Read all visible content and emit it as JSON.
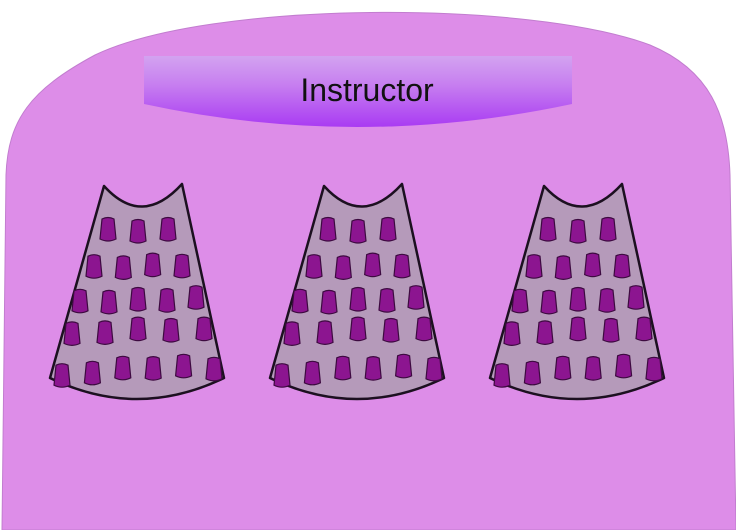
{
  "title": "Instructor",
  "colors": {
    "room": "#dd8de8",
    "stage_light": "#c77ff0",
    "stage_dark": "#a93bf2",
    "section_fill": "#b59aba",
    "section_stroke": "#1c1020",
    "seat_fill": "#8c1590",
    "seat_stroke": "#3d0a40"
  },
  "sections": [
    {
      "name": "left",
      "rows": [
        3,
        4,
        5,
        5,
        6
      ]
    },
    {
      "name": "center",
      "rows": [
        3,
        4,
        5,
        5,
        6
      ]
    },
    {
      "name": "right",
      "rows": [
        3,
        4,
        5,
        5,
        6
      ]
    }
  ]
}
